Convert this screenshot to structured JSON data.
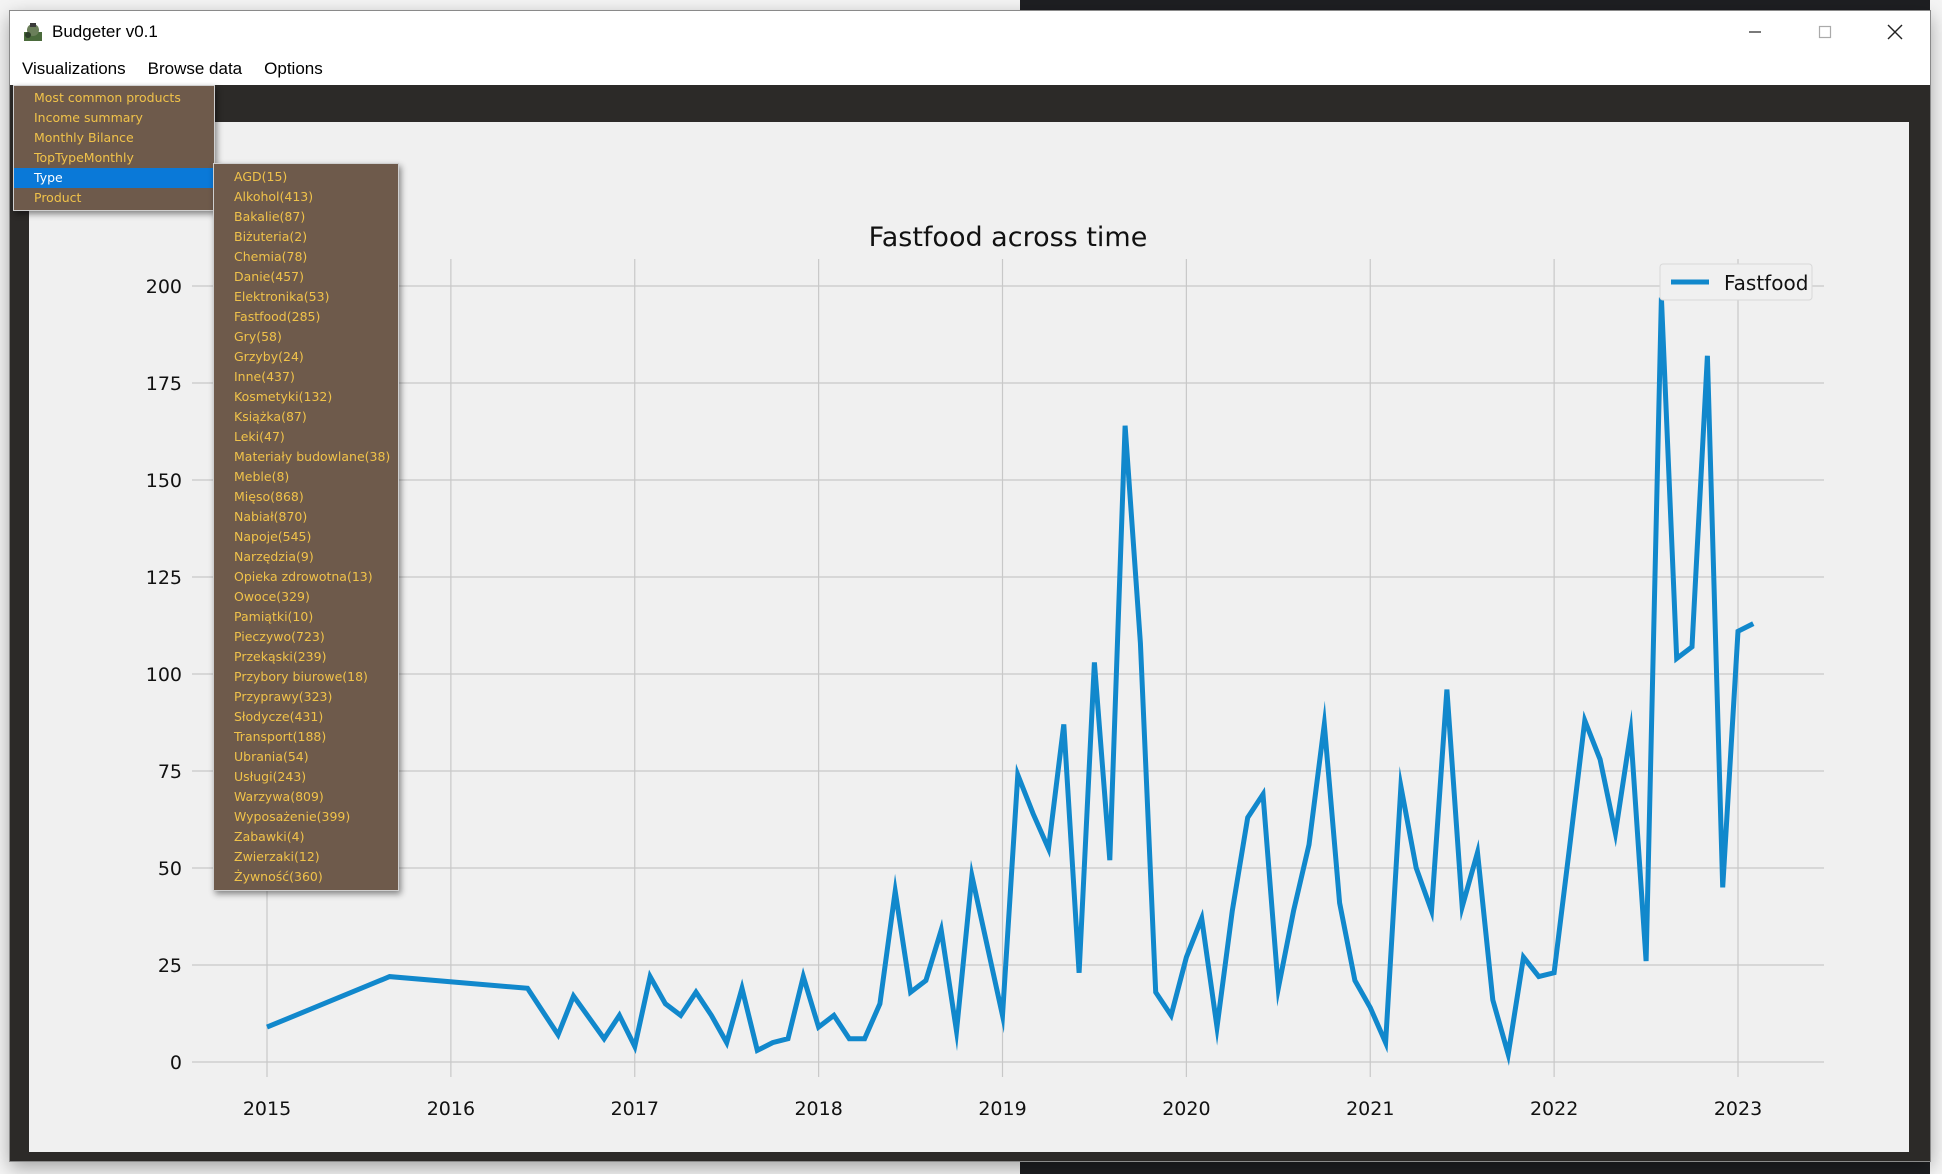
{
  "window": {
    "title": "Budgeter v0.1"
  },
  "menubar": [
    "Visualizations",
    "Browse data",
    "Options"
  ],
  "viz_menu": {
    "items": [
      "Most common products",
      "Income summary",
      "Monthly Bilance",
      "TopTypeMonthly",
      "Type",
      "Product"
    ],
    "selected_index": 4
  },
  "type_menu": {
    "items": [
      "AGD(15)",
      "Alkohol(413)",
      "Bakalie(87)",
      "Biżuteria(2)",
      "Chemia(78)",
      "Danie(457)",
      "Elektronika(53)",
      "Fastfood(285)",
      "Gry(58)",
      "Grzyby(24)",
      "Inne(437)",
      "Kosmetyki(132)",
      "Książka(87)",
      "Leki(47)",
      "Materiały budowlane(38)",
      "Meble(8)",
      "Mięso(868)",
      "Nabiał(870)",
      "Napoje(545)",
      "Narzędzia(9)",
      "Opieka zdrowotna(13)",
      "Owoce(329)",
      "Pamiątki(10)",
      "Pieczywo(723)",
      "Przekąski(239)",
      "Przybory biurowe(18)",
      "Przyprawy(323)",
      "Słodycze(431)",
      "Transport(188)",
      "Ubrania(54)",
      "Usługi(243)",
      "Warzywa(809)",
      "Wyposażenie(399)",
      "Zabawki(4)",
      "Zwierzaki(12)",
      "Żywność(360)"
    ]
  },
  "colors": {
    "line": "#1188cc",
    "menu_bg": "#6e5a4b",
    "menu_text": "#f0c24a",
    "menu_sel": "#0a79d8"
  },
  "chart_data": {
    "type": "line",
    "title": "Fastfood across time",
    "legend": "top-right",
    "grid": true,
    "ylim": [
      0,
      210
    ],
    "y_ticks": [
      0,
      25,
      50,
      75,
      100,
      125,
      150,
      175,
      200
    ],
    "x_ticks": [
      "2015",
      "2016",
      "2017",
      "2018",
      "2019",
      "2020",
      "2021",
      "2022",
      "2023"
    ],
    "series": [
      {
        "name": "Fastfood",
        "x": [
          "2015-01",
          "2015-09",
          "2016-06",
          "2016-08",
          "2016-09",
          "2016-11",
          "2016-12",
          "2017-01",
          "2017-02",
          "2017-03",
          "2017-04",
          "2017-05",
          "2017-06",
          "2017-07",
          "2017-08",
          "2017-09",
          "2017-10",
          "2017-11",
          "2017-12",
          "2018-01",
          "2018-02",
          "2018-03",
          "2018-04",
          "2018-05",
          "2018-06",
          "2018-07",
          "2018-08",
          "2018-09",
          "2018-10",
          "2018-11",
          "2018-12",
          "2019-01",
          "2019-02",
          "2019-03",
          "2019-04",
          "2019-05",
          "2019-06",
          "2019-07",
          "2019-08",
          "2019-09",
          "2019-10",
          "2019-11",
          "2019-12",
          "2020-01",
          "2020-02",
          "2020-03",
          "2020-04",
          "2020-05",
          "2020-06",
          "2020-07",
          "2020-08",
          "2020-09",
          "2020-10",
          "2020-11",
          "2020-12",
          "2021-01",
          "2021-02",
          "2021-03",
          "2021-04",
          "2021-05",
          "2021-06",
          "2021-07",
          "2021-08",
          "2021-09",
          "2021-10",
          "2021-11",
          "2021-12",
          "2022-01",
          "2022-02",
          "2022-03",
          "2022-04",
          "2022-05",
          "2022-06",
          "2022-07",
          "2022-08",
          "2022-09",
          "2022-10",
          "2022-11",
          "2022-12",
          "2023-01",
          "2023-02"
        ],
        "values": [
          9,
          22,
          19,
          7,
          17,
          6,
          12,
          4,
          22,
          15,
          12,
          18,
          12,
          5,
          19,
          3,
          5,
          6,
          22,
          9,
          12,
          6,
          6,
          15,
          44,
          18,
          21,
          34,
          8,
          48,
          30,
          12,
          74,
          64,
          55,
          87,
          23,
          103,
          52,
          164,
          108,
          18,
          12,
          27,
          37,
          9,
          39,
          63,
          69,
          19,
          39,
          56,
          87,
          41,
          21,
          14,
          5,
          71,
          50,
          39,
          96,
          40,
          54,
          16,
          2,
          27,
          22,
          23,
          55,
          88,
          78,
          59,
          85,
          26,
          197,
          104,
          107,
          182,
          45,
          111,
          113
        ]
      }
    ]
  }
}
